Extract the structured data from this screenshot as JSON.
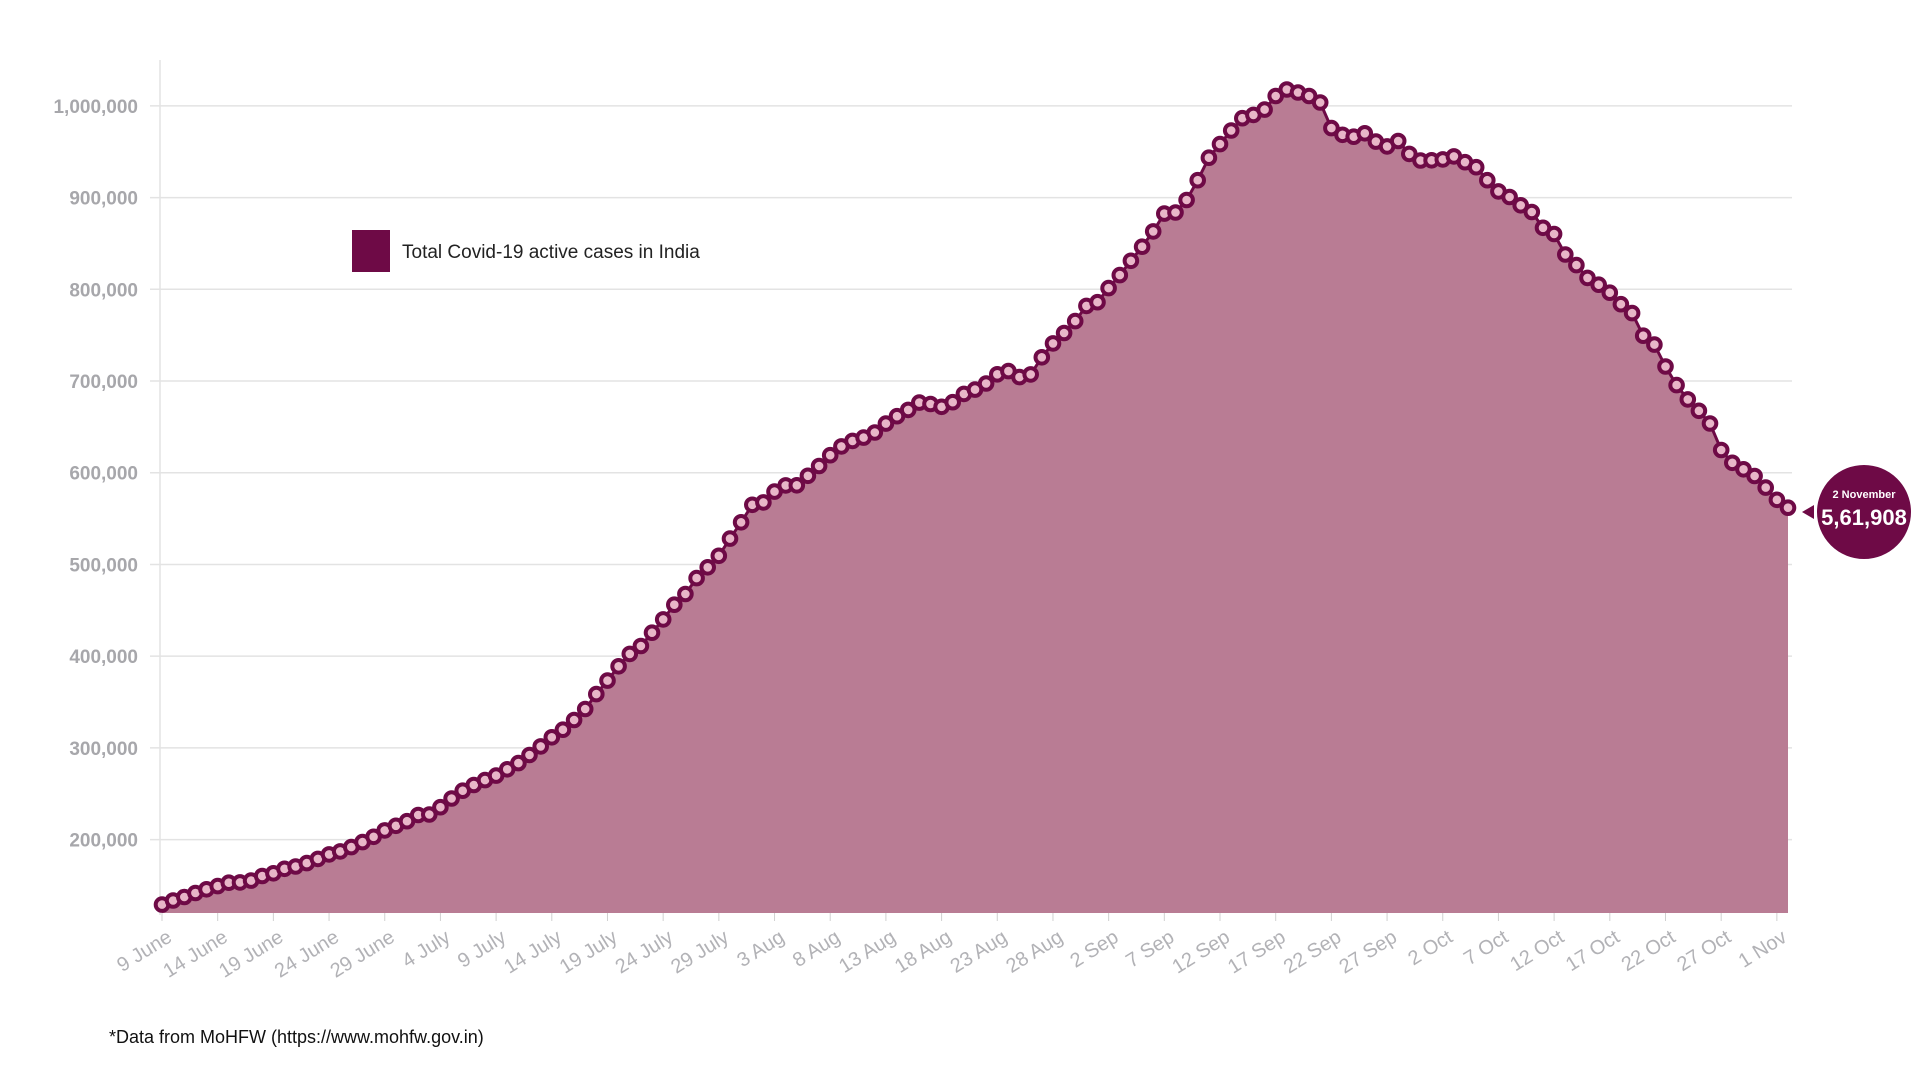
{
  "chart_data": {
    "type": "area",
    "series": [
      {
        "name": "Total Covid-19 active cases in India",
        "start": "9 June",
        "values": [
          129200,
          133600,
          137400,
          141800,
          145800,
          149300,
          153000,
          153400,
          155300,
          160300,
          163300,
          168200,
          170700,
          174400,
          179000,
          183900,
          187200,
          191900,
          197300,
          203100,
          210100,
          215100,
          220100,
          226900,
          227400,
          235400,
          244800,
          253300,
          259500,
          264900,
          269800,
          276700,
          283400,
          292300,
          301600,
          311600,
          319800,
          330400,
          342400,
          358700,
          373400,
          389000,
          402500,
          411100,
          425600,
          440100,
          456100,
          467800,
          485100,
          496900,
          509400,
          528200,
          546000,
          565100,
          567700,
          579400,
          586200,
          586300,
          596700,
          607400,
          619100,
          628700,
          634700,
          638300,
          643900,
          653600,
          661700,
          668500,
          676500,
          675000,
          671900,
          676900,
          686000,
          690600,
          697300,
          707300,
          710800,
          704300,
          707200,
          725900,
          741000,
          752400,
          765300,
          781900,
          785900,
          801300,
          815500,
          831100,
          846400,
          863100,
          882500,
          883700,
          897400,
          919000,
          943500,
          958300,
          973100,
          986600,
          990100,
          995900,
          1010800,
          1017800,
          1014600,
          1010700,
          1003700,
          975800,
          968400,
          966400,
          970100,
          961000,
          955800,
          961700,
          947600,
          940400,
          940700,
          941600,
          944900,
          938600,
          933100,
          919000,
          906700,
          900600,
          891600,
          884300,
          867000,
          860300,
          837900,
          826400,
          812400,
          805000,
          796300,
          783800,
          774000,
          749400,
          739700,
          715800,
          695500,
          680000,
          667500,
          653700,
          624800,
          610800,
          603700,
          596400,
          583800,
          570500,
          561908
        ]
      }
    ],
    "x_tick_labels": [
      "9 June",
      "14 June",
      "19 June",
      "24 June",
      "29 June",
      "4 July",
      "9 July",
      "14 July",
      "19 July",
      "24 July",
      "29 July",
      "3 Aug",
      "8 Aug",
      "13 Aug",
      "18 Aug",
      "23 Aug",
      "28 Aug",
      "2 Sep",
      "7 Sep",
      "12 Sep",
      "17 Sep",
      "22 Sep",
      "27 Sep",
      "2 Oct",
      "7 Oct",
      "12 Oct",
      "17 Oct",
      "22 Oct",
      "27 Oct",
      "1 Nov"
    ],
    "y_ticks": [
      200000,
      300000,
      400000,
      500000,
      600000,
      700000,
      800000,
      900000,
      1000000
    ],
    "y_tick_labels": [
      "200,000",
      "300,000",
      "400,000",
      "500,000",
      "600,000",
      "700,000",
      "800,000",
      "900,000",
      "1,000,000"
    ],
    "ylim": [
      120000,
      1050000
    ],
    "grid": true,
    "legend_position": "top-left",
    "title": "",
    "xlabel": "",
    "ylabel": ""
  },
  "callout": {
    "date": "2 November",
    "value": "5,61,908"
  },
  "footnote": "*Data from MoHFW (https://www.mohfw.gov.in)",
  "colors": {
    "area_fill": "#b97c94",
    "line": "#6e0a46",
    "marker_center": "#e8b6c8",
    "grid": "#e3e3e3",
    "callout": "#6e0a46"
  }
}
